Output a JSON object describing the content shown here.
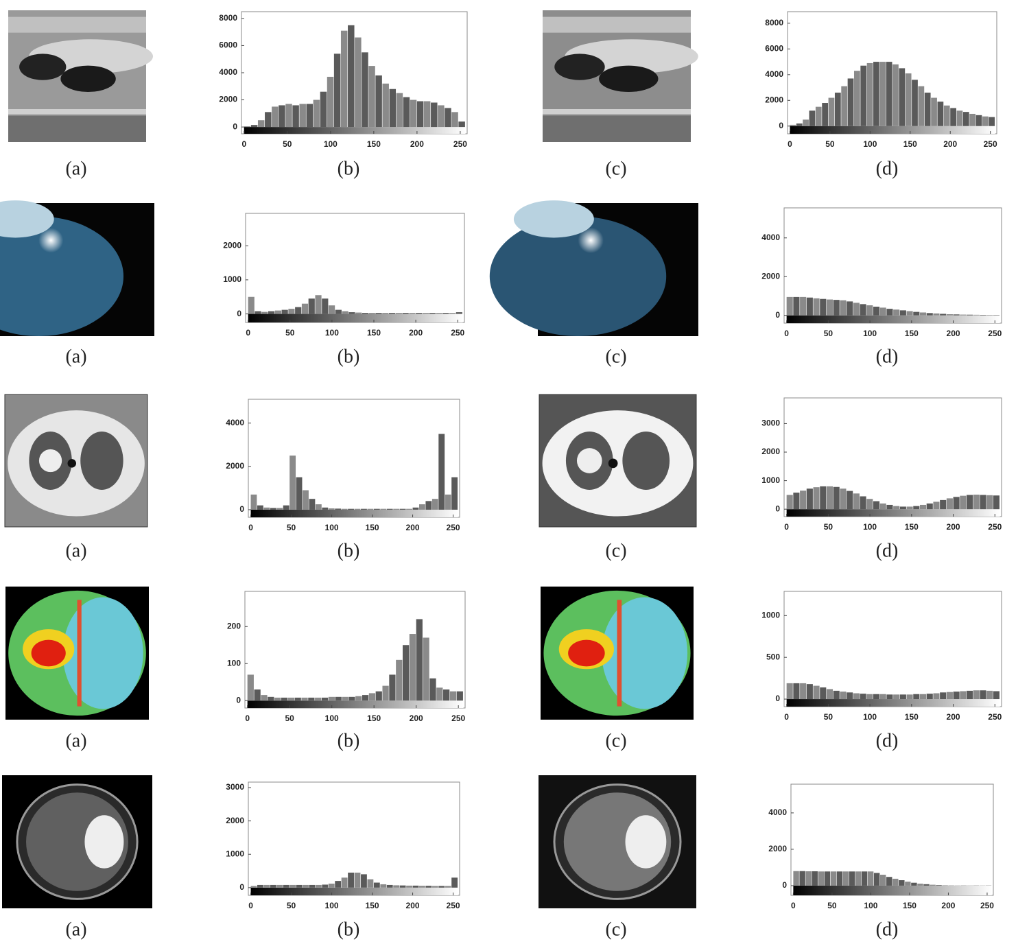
{
  "captions": [
    [
      "(a)",
      "(b)",
      "(c)",
      "(d)"
    ],
    [
      "(a)",
      "(b)",
      "(c)",
      "(d)"
    ],
    [
      "(a)",
      "(b)",
      "(c)",
      "(d)"
    ],
    [
      "(a)",
      "(b)",
      "(c)",
      "(d)"
    ],
    [
      "(a)",
      "(b)",
      "(c)",
      "(d)"
    ]
  ],
  "chart_data": [
    {
      "type": "histogram",
      "color": "#5a5a5a",
      "bins": [
        0,
        8,
        16,
        24,
        32,
        40,
        48,
        56,
        64,
        72,
        80,
        88,
        96,
        104,
        112,
        120,
        128,
        136,
        144,
        152,
        160,
        168,
        176,
        184,
        192,
        200,
        208,
        216,
        224,
        232,
        240,
        248,
        256
      ],
      "values": [
        50,
        150,
        500,
        1100,
        1500,
        1600,
        1700,
        1600,
        1700,
        1700,
        2000,
        2600,
        3700,
        5400,
        7100,
        7500,
        6600,
        5500,
        4500,
        3800,
        3200,
        2800,
        2500,
        2200,
        2000,
        1900,
        1900,
        1800,
        1600,
        1400,
        1100,
        400
      ],
      "xlim": [
        -3,
        258
      ],
      "ylim": [
        -500,
        8500
      ],
      "xticks": [
        0,
        50,
        100,
        150,
        200,
        250
      ],
      "yticks": [
        0,
        2000,
        4000,
        6000,
        8000
      ]
    },
    {
      "type": "histogram",
      "color": "#5a5a5a",
      "bins": [
        0,
        8,
        16,
        24,
        32,
        40,
        48,
        56,
        64,
        72,
        80,
        88,
        96,
        104,
        112,
        120,
        128,
        136,
        144,
        152,
        160,
        168,
        176,
        184,
        192,
        200,
        208,
        216,
        224,
        232,
        240,
        248,
        256
      ],
      "values": [
        100,
        200,
        500,
        1200,
        1500,
        1800,
        2200,
        2600,
        3100,
        3700,
        4300,
        4700,
        4900,
        5000,
        5000,
        5000,
        4800,
        4500,
        4100,
        3600,
        3100,
        2600,
        2200,
        1900,
        1600,
        1400,
        1200,
        1100,
        950,
        850,
        750,
        700
      ],
      "xlim": [
        -3,
        258
      ],
      "ylim": [
        -600,
        8900
      ],
      "xticks": [
        0,
        50,
        100,
        150,
        200,
        250
      ],
      "yticks": [
        0,
        2000,
        4000,
        6000,
        8000
      ]
    },
    {
      "type": "histogram",
      "color": "#5a5a5a",
      "bins": [
        0,
        8,
        16,
        24,
        32,
        40,
        48,
        56,
        64,
        72,
        80,
        88,
        96,
        104,
        112,
        120,
        128,
        136,
        144,
        152,
        160,
        168,
        176,
        184,
        192,
        200,
        208,
        216,
        224,
        232,
        240,
        248,
        256
      ],
      "values": [
        500,
        80,
        60,
        80,
        100,
        120,
        150,
        200,
        300,
        450,
        550,
        450,
        250,
        120,
        80,
        50,
        40,
        30,
        30,
        30,
        30,
        30,
        30,
        30,
        30,
        30,
        30,
        30,
        30,
        30,
        30,
        50
      ],
      "xlim": [
        -3,
        258
      ],
      "ylim": [
        -250,
        2950
      ],
      "xticks": [
        0,
        50,
        100,
        150,
        200,
        250
      ],
      "yticks": [
        0,
        1000,
        2000
      ]
    },
    {
      "type": "histogram",
      "color": "#5a5a5a",
      "bins": [
        0,
        8,
        16,
        24,
        32,
        40,
        48,
        56,
        64,
        72,
        80,
        88,
        96,
        104,
        112,
        120,
        128,
        136,
        144,
        152,
        160,
        168,
        176,
        184,
        192,
        200,
        208,
        216,
        224,
        232,
        240,
        248,
        256
      ],
      "values": [
        950,
        950,
        950,
        920,
        880,
        850,
        820,
        800,
        780,
        720,
        650,
        580,
        520,
        450,
        400,
        340,
        300,
        260,
        220,
        180,
        150,
        120,
        100,
        80,
        60,
        50,
        40,
        35,
        30,
        25,
        25,
        20
      ],
      "xlim": [
        -3,
        258
      ],
      "ylim": [
        -400,
        5550
      ],
      "xticks": [
        0,
        50,
        100,
        150,
        200,
        250
      ],
      "yticks": [
        0,
        2000,
        4000
      ]
    },
    {
      "type": "histogram",
      "color": "#5a5a5a",
      "bins": [
        0,
        8,
        16,
        24,
        32,
        40,
        48,
        56,
        64,
        72,
        80,
        88,
        96,
        104,
        112,
        120,
        128,
        136,
        144,
        152,
        160,
        168,
        176,
        184,
        192,
        200,
        208,
        216,
        224,
        232,
        240,
        248,
        256
      ],
      "values": [
        700,
        200,
        100,
        80,
        80,
        200,
        2500,
        1500,
        900,
        500,
        250,
        100,
        60,
        50,
        40,
        40,
        40,
        40,
        40,
        40,
        40,
        40,
        40,
        40,
        40,
        100,
        250,
        400,
        500,
        3500,
        700,
        1500
      ],
      "xlim": [
        -3,
        258
      ],
      "ylim": [
        -350,
        5100
      ],
      "xticks": [
        0,
        50,
        100,
        150,
        200,
        250
      ],
      "yticks": [
        0,
        2000,
        4000
      ]
    },
    {
      "type": "histogram",
      "color": "#5a5a5a",
      "bins": [
        0,
        8,
        16,
        24,
        32,
        40,
        48,
        56,
        64,
        72,
        80,
        88,
        96,
        104,
        112,
        120,
        128,
        136,
        144,
        152,
        160,
        168,
        176,
        184,
        192,
        200,
        208,
        216,
        224,
        232,
        240,
        248,
        256
      ],
      "values": [
        500,
        580,
        650,
        720,
        770,
        800,
        800,
        780,
        720,
        640,
        550,
        450,
        360,
        280,
        200,
        150,
        110,
        90,
        90,
        110,
        150,
        200,
        260,
        320,
        380,
        430,
        470,
        500,
        510,
        500,
        490,
        480
      ],
      "xlim": [
        -3,
        258
      ],
      "ylim": [
        -260,
        3900
      ],
      "xticks": [
        0,
        50,
        100,
        150,
        200,
        250
      ],
      "yticks": [
        0,
        1000,
        2000,
        3000
      ]
    },
    {
      "type": "histogram",
      "color": "#5a5a5a",
      "bins": [
        0,
        8,
        16,
        24,
        32,
        40,
        48,
        56,
        64,
        72,
        80,
        88,
        96,
        104,
        112,
        120,
        128,
        136,
        144,
        152,
        160,
        168,
        176,
        184,
        192,
        200,
        208,
        216,
        224,
        232,
        240,
        248,
        256
      ],
      "values": [
        70,
        30,
        15,
        10,
        8,
        8,
        8,
        8,
        8,
        8,
        8,
        8,
        10,
        10,
        10,
        10,
        12,
        15,
        20,
        25,
        40,
        70,
        110,
        150,
        180,
        220,
        170,
        60,
        35,
        30,
        25,
        25
      ],
      "xlim": [
        -3,
        258
      ],
      "ylim": [
        -20,
        295
      ],
      "xticks": [
        0,
        50,
        100,
        150,
        200,
        250
      ],
      "yticks": [
        0,
        100,
        200
      ]
    },
    {
      "type": "histogram",
      "color": "#5a5a5a",
      "bins": [
        0,
        8,
        16,
        24,
        32,
        40,
        48,
        56,
        64,
        72,
        80,
        88,
        96,
        104,
        112,
        120,
        128,
        136,
        144,
        152,
        160,
        168,
        176,
        184,
        192,
        200,
        208,
        216,
        224,
        232,
        240,
        248,
        256
      ],
      "values": [
        190,
        190,
        190,
        180,
        160,
        140,
        120,
        100,
        90,
        80,
        70,
        65,
        60,
        60,
        60,
        55,
        55,
        55,
        55,
        60,
        60,
        65,
        70,
        80,
        85,
        90,
        95,
        100,
        105,
        105,
        100,
        95
      ],
      "xlim": [
        -3,
        258
      ],
      "ylim": [
        -90,
        1290
      ],
      "xticks": [
        0,
        50,
        100,
        150,
        200,
        250
      ],
      "yticks": [
        0,
        500,
        1000
      ]
    },
    {
      "type": "histogram",
      "color": "#5a5a5a",
      "bins": [
        0,
        8,
        16,
        24,
        32,
        40,
        48,
        56,
        64,
        72,
        80,
        88,
        96,
        104,
        112,
        120,
        128,
        136,
        144,
        152,
        160,
        168,
        176,
        184,
        192,
        200,
        208,
        216,
        224,
        232,
        240,
        248,
        256
      ],
      "values": [
        50,
        80,
        80,
        80,
        80,
        80,
        80,
        80,
        80,
        80,
        80,
        90,
        120,
        200,
        300,
        450,
        450,
        400,
        250,
        150,
        100,
        80,
        70,
        65,
        60,
        60,
        55,
        55,
        50,
        50,
        50,
        300
      ],
      "xlim": [
        -3,
        258
      ],
      "ylim": [
        -230,
        3165
      ],
      "xticks": [
        0,
        50,
        100,
        150,
        200,
        250
      ],
      "yticks": [
        0,
        1000,
        2000,
        3000
      ]
    },
    {
      "type": "histogram",
      "color": "#5a5a5a",
      "bins": [
        0,
        8,
        16,
        24,
        32,
        40,
        48,
        56,
        64,
        72,
        80,
        88,
        96,
        104,
        112,
        120,
        128,
        136,
        144,
        152,
        160,
        168,
        176,
        184,
        192,
        200,
        208,
        216,
        224,
        232,
        240,
        248,
        256
      ],
      "values": [
        800,
        800,
        790,
        790,
        780,
        780,
        780,
        780,
        780,
        780,
        780,
        780,
        780,
        700,
        600,
        480,
        380,
        300,
        220,
        160,
        110,
        80,
        50,
        30,
        20,
        10,
        10,
        10,
        10,
        10,
        10,
        10
      ],
      "xlim": [
        -3,
        258
      ],
      "ylim": [
        -530,
        5580
      ],
      "xticks": [
        0,
        50,
        100,
        150,
        200,
        250
      ],
      "yticks": [
        0,
        2000,
        4000
      ]
    }
  ]
}
